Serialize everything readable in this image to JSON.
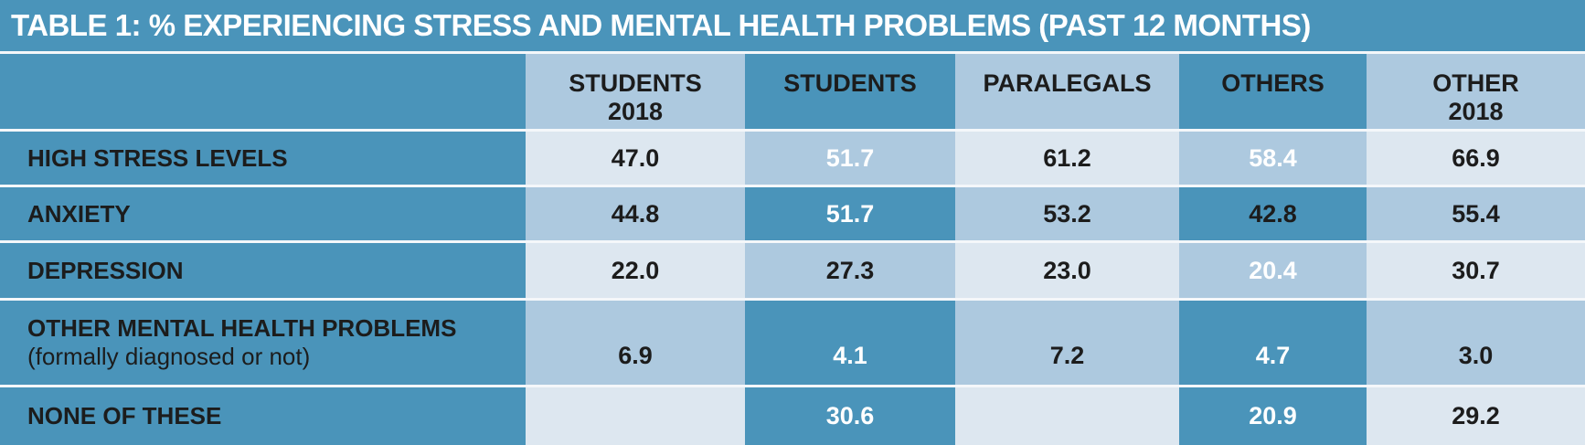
{
  "title": "TABLE 1: % EXPERIENCING STRESS AND MENTAL HEALTH PROBLEMS (PAST 12 MONTHS)",
  "columns": [
    {
      "line1": "STUDENTS",
      "line2": "2018"
    },
    {
      "line1": "STUDENTS",
      "line2": ""
    },
    {
      "line1": "PARALEGALS",
      "line2": ""
    },
    {
      "line1": "OTHERS",
      "line2": ""
    },
    {
      "line1": "OTHER",
      "line2": "2018"
    }
  ],
  "rows": [
    {
      "label": "HIGH STRESS LEVELS",
      "sublabel": "",
      "values": [
        "47.0",
        "51.7",
        "61.2",
        "58.4",
        "66.9"
      ]
    },
    {
      "label": "ANXIETY",
      "sublabel": "",
      "values": [
        "44.8",
        "51.7",
        "53.2",
        "42.8",
        "55.4"
      ]
    },
    {
      "label": "DEPRESSION",
      "sublabel": "",
      "values": [
        "22.0",
        "27.3",
        "23.0",
        "20.4",
        "30.7"
      ]
    },
    {
      "label": "OTHER MENTAL HEALTH PROBLEMS",
      "sublabel": "(formally diagnosed or not)",
      "values": [
        "6.9",
        "4.1",
        "7.2",
        "4.7",
        "3.0"
      ]
    },
    {
      "label": "NONE OF THESE",
      "sublabel": "",
      "values": [
        "",
        "30.6",
        "",
        "20.9",
        "29.2"
      ]
    }
  ],
  "colors": {
    "dark": "#4a94ba",
    "light": "#adc9df",
    "pale": "#dde7f0",
    "divider": "#f4f7fa"
  }
}
